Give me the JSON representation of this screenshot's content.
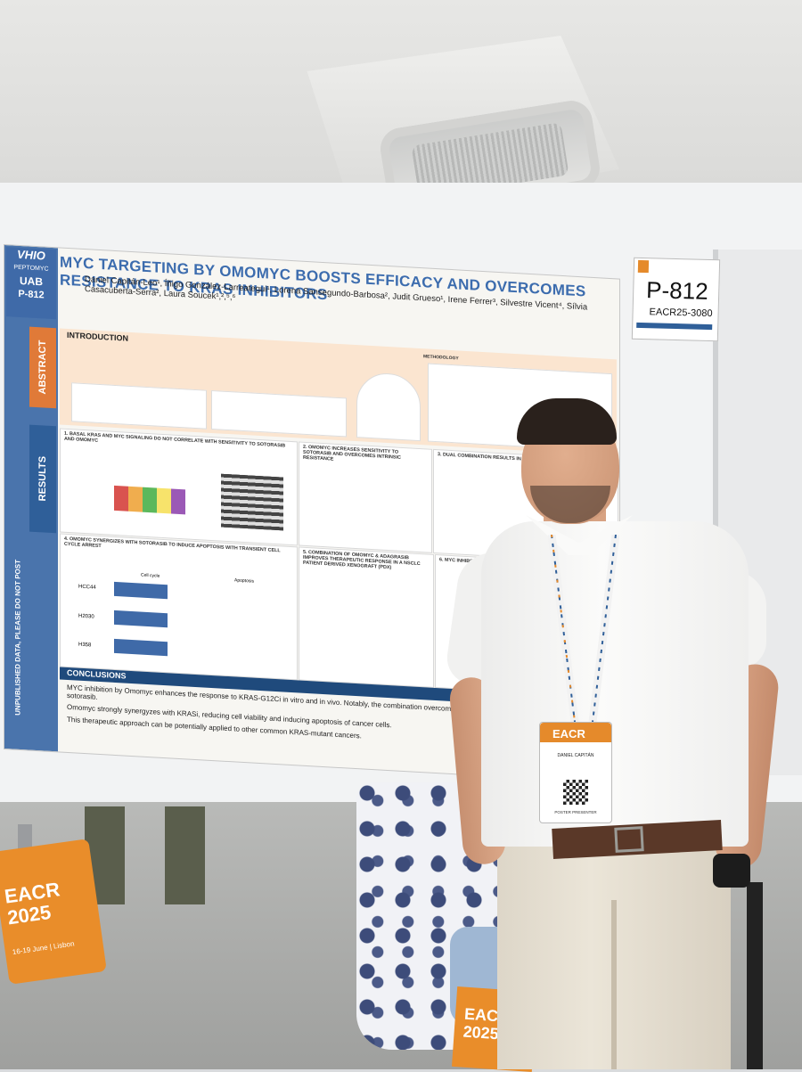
{
  "poster": {
    "logo_lines": [
      "VHIO",
      "PEPTOMYC",
      "UAB",
      "P-812"
    ],
    "title": "MYC TARGETING BY OMOMYC BOOSTS EFFICACY AND OVERCOMES RESISTANCE TO KRAS INHIBITORS",
    "authors": "Daniel Capitán-Leo¹, Íñigo González-Larreategui¹, Lorena Sansegundo-Barbosa², Judit Grueso¹, Irene Ferrer³, Silvestre Vicent⁴, Sílvia Casacuberta-Serra², Laura Soucek¹,²,⁵,⁶",
    "side_labels": {
      "abstract": "ABSTRACT",
      "results": "RESULTS",
      "unpublished": "UNPUBLISHED DATA, PLEASE DO NOT POST"
    },
    "intro_heading": "INTRODUCTION",
    "methodology_heading": "METHODOLOGY",
    "section_headings": [
      "1. BASAL KRAS AND MYC SIGNALING DO NOT CORRELATE WITH SENSITIVITY TO SOTORASIB AND OMOMYC",
      "2. OMOMYC INCREASES SENSITIVITY TO SOTORASIB AND OVERCOMES INTRINSIC RESISTANCE",
      "3. DUAL COMBINATION RESULTS IN A SYNERGISTIC EFFECT",
      "4. OMOMYC SYNERGIZES WITH SOTORASIB TO INDUCE APOPTOSIS WITH TRANSIENT CELL CYCLE ARREST",
      "5. COMBINATION OF OMOMYC & ADAGRASIB IMPROVES THERAPEUTIC RESPONSE IN A NSCLC PATIENT DERIVED XENOGRAFT (PDX)",
      "6. MYC INHIBITION BY OMOMYC RESENSITIZES NSCLC"
    ],
    "cell_line_labels": [
      "HCC44",
      "H2030",
      "H358"
    ],
    "panel_labels": [
      "Cell cycle",
      "Apoptosis"
    ],
    "conclusions_heading": "CONCLUSIONS",
    "conclusions": [
      "MYC inhibition by Omomyc enhances the response to KRAS-G12Ci in vitro and in vivo. Notably, the combination overcomes both intrinsic and acquired resistance to sotorasib.",
      "Omomyc strongly synergyzes with KRASi, reducing cell viability and inducing apoptosis of cancer cells.",
      "This therapeutic approach can be potentially applied to other common KRAS-mutant cancers."
    ]
  },
  "board_tag": {
    "poster_id": "P-812",
    "abstract_id": "EACR25-3080"
  },
  "badge": {
    "event": "EACR 2025",
    "name": "DANIEL CAPITÁN",
    "role": "POSTER PRESENTER"
  },
  "bag_left": {
    "event": "EACR 2025",
    "dates": "16-19 June | Lisbon"
  },
  "bag_bottom": {
    "event": "EACR 2025"
  },
  "colors": {
    "poster_blue": "#3c6cae",
    "abstract_orange": "#e07a38",
    "conclusions_navy": "#1f4a7c",
    "eacr_orange": "#e98d2a"
  }
}
